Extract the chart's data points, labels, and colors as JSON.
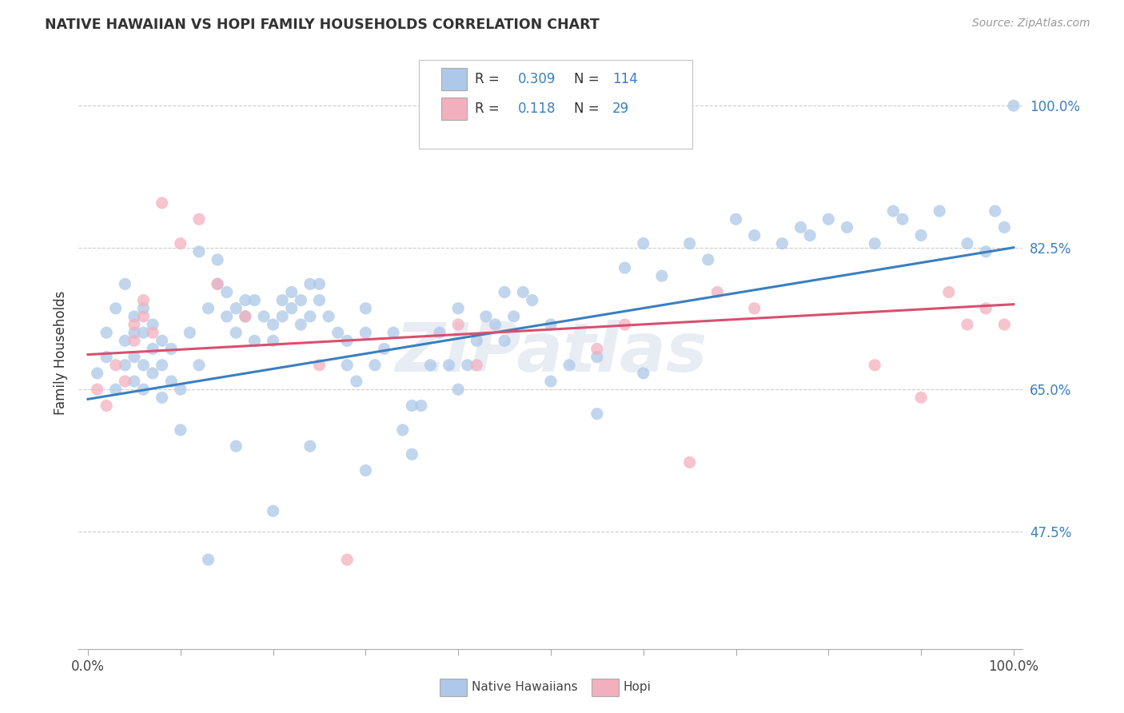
{
  "title": "NATIVE HAWAIIAN VS HOPI FAMILY HOUSEHOLDS CORRELATION CHART",
  "source": "Source: ZipAtlas.com",
  "ylabel": "Family Households",
  "blue_color": "#adc8e8",
  "blue_line_color": "#3a7fc1",
  "pink_color": "#f2b0be",
  "pink_line_color": "#d94f6e",
  "legend_blue_label_r": "R = 0.309",
  "legend_blue_label_n": "N = 114",
  "legend_pink_label_r": "R =  0.118",
  "legend_pink_label_n": "N =  29",
  "legend_blue_color": "#adc8e8",
  "legend_pink_color": "#f2b0be",
  "watermark": "ZIPatlas",
  "bottom_label_left": "Native Hawaiians",
  "bottom_label_right": "Hopi",
  "ytick_vals": [
    0.475,
    0.65,
    0.825,
    1.0
  ],
  "ytick_labels": [
    "47.5%",
    "65.0%",
    "82.5%",
    "100.0%"
  ],
  "xlim": [
    -0.01,
    1.01
  ],
  "ylim": [
    0.33,
    1.06
  ],
  "blue_scatter_x": [
    0.01,
    0.02,
    0.02,
    0.03,
    0.03,
    0.04,
    0.04,
    0.04,
    0.05,
    0.05,
    0.05,
    0.05,
    0.06,
    0.06,
    0.06,
    0.06,
    0.07,
    0.07,
    0.07,
    0.08,
    0.08,
    0.08,
    0.09,
    0.09,
    0.1,
    0.1,
    0.11,
    0.12,
    0.12,
    0.13,
    0.14,
    0.14,
    0.15,
    0.15,
    0.16,
    0.16,
    0.17,
    0.17,
    0.18,
    0.18,
    0.19,
    0.2,
    0.2,
    0.21,
    0.21,
    0.22,
    0.22,
    0.23,
    0.23,
    0.24,
    0.24,
    0.25,
    0.25,
    0.26,
    0.27,
    0.28,
    0.28,
    0.29,
    0.3,
    0.3,
    0.31,
    0.32,
    0.33,
    0.34,
    0.35,
    0.36,
    0.37,
    0.38,
    0.39,
    0.4,
    0.41,
    0.42,
    0.43,
    0.44,
    0.45,
    0.46,
    0.47,
    0.48,
    0.5,
    0.52,
    0.55,
    0.58,
    0.6,
    0.62,
    0.65,
    0.67,
    0.7,
    0.72,
    0.75,
    0.77,
    0.78,
    0.8,
    0.82,
    0.85,
    0.87,
    0.88,
    0.9,
    0.92,
    0.95,
    0.97,
    0.98,
    0.99,
    1.0,
    0.13,
    0.16,
    0.2,
    0.24,
    0.3,
    0.35,
    0.4,
    0.45,
    0.5,
    0.55,
    0.6
  ],
  "blue_scatter_y": [
    0.67,
    0.72,
    0.69,
    0.75,
    0.65,
    0.68,
    0.71,
    0.78,
    0.66,
    0.69,
    0.72,
    0.74,
    0.65,
    0.68,
    0.72,
    0.75,
    0.67,
    0.7,
    0.73,
    0.64,
    0.68,
    0.71,
    0.66,
    0.7,
    0.6,
    0.65,
    0.72,
    0.68,
    0.82,
    0.75,
    0.78,
    0.81,
    0.74,
    0.77,
    0.72,
    0.75,
    0.76,
    0.74,
    0.71,
    0.76,
    0.74,
    0.71,
    0.73,
    0.76,
    0.74,
    0.77,
    0.75,
    0.73,
    0.76,
    0.78,
    0.74,
    0.76,
    0.78,
    0.74,
    0.72,
    0.68,
    0.71,
    0.66,
    0.75,
    0.72,
    0.68,
    0.7,
    0.72,
    0.6,
    0.57,
    0.63,
    0.68,
    0.72,
    0.68,
    0.65,
    0.68,
    0.71,
    0.74,
    0.73,
    0.71,
    0.74,
    0.77,
    0.76,
    0.73,
    0.68,
    0.62,
    0.8,
    0.83,
    0.79,
    0.83,
    0.81,
    0.86,
    0.84,
    0.83,
    0.85,
    0.84,
    0.86,
    0.85,
    0.83,
    0.87,
    0.86,
    0.84,
    0.87,
    0.83,
    0.82,
    0.87,
    0.85,
    1.0,
    0.44,
    0.58,
    0.5,
    0.58,
    0.55,
    0.63,
    0.75,
    0.77,
    0.66,
    0.69,
    0.67
  ],
  "pink_scatter_x": [
    0.01,
    0.02,
    0.03,
    0.04,
    0.05,
    0.05,
    0.06,
    0.06,
    0.07,
    0.08,
    0.1,
    0.12,
    0.14,
    0.17,
    0.25,
    0.28,
    0.4,
    0.42,
    0.55,
    0.58,
    0.65,
    0.68,
    0.72,
    0.85,
    0.9,
    0.93,
    0.95,
    0.97,
    0.99
  ],
  "pink_scatter_y": [
    0.65,
    0.63,
    0.68,
    0.66,
    0.71,
    0.73,
    0.74,
    0.76,
    0.72,
    0.88,
    0.83,
    0.86,
    0.78,
    0.74,
    0.68,
    0.44,
    0.73,
    0.68,
    0.7,
    0.73,
    0.56,
    0.77,
    0.75,
    0.68,
    0.64,
    0.77,
    0.73,
    0.75,
    0.73
  ],
  "blue_trend_x": [
    0.0,
    1.0
  ],
  "blue_trend_y": [
    0.638,
    0.825
  ],
  "pink_trend_x": [
    0.0,
    1.0
  ],
  "pink_trend_y": [
    0.693,
    0.755
  ]
}
